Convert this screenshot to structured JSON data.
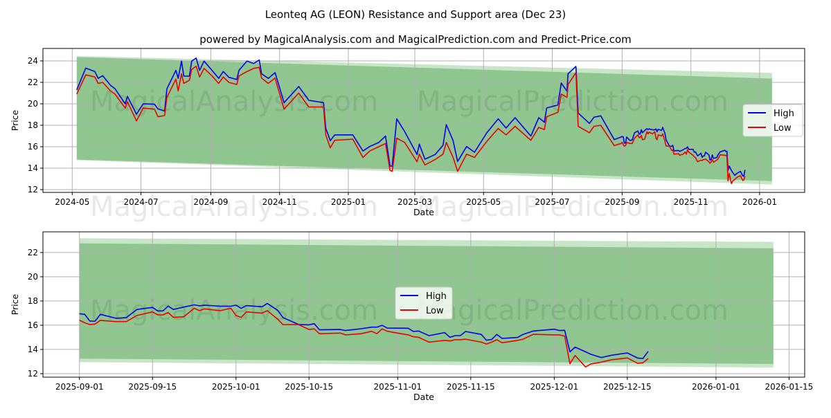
{
  "title": "Leonteq AG (LEON) Resistance and Support area (Dec 23)",
  "subtitle": "powered by MagicalAnalysis.com and MagicalPrediction.com and Predict-Price.com",
  "watermarks": [
    "MagicalAnalysis.com",
    "MagicalPrediction.com"
  ],
  "colors": {
    "high": "#0000ee",
    "low": "#ee0000",
    "band": "#8fc68f",
    "band_light": "#c2e2c2",
    "grid": "#b0b0b0"
  },
  "chart_data": [
    {
      "type": "line",
      "xlabel": "Date",
      "ylabel": "Price",
      "xlim": [
        "2024-04-05",
        "2026-02-10"
      ],
      "ylim": [
        11.74,
        25.16
      ],
      "grid": true,
      "legend": {
        "placement": "center-right",
        "entries": [
          "High",
          "Low"
        ]
      },
      "xticks": [
        "2024-05",
        "2024-07",
        "2024-09",
        "2024-11",
        "2025-01",
        "2025-03",
        "2025-05",
        "2025-07",
        "2025-09",
        "2025-11",
        "2026-01"
      ],
      "yticks": [
        12,
        14,
        16,
        18,
        20,
        22,
        24
      ],
      "bands": [
        {
          "name": "outer",
          "x": [
            "2024-05-05",
            "2026-01-12"
          ],
          "upper": [
            24.45,
            22.88
          ],
          "lower": [
            14.75,
            12.47
          ]
        },
        {
          "name": "inner",
          "x": [
            "2024-05-05",
            "2026-01-12"
          ],
          "upper": [
            24.35,
            22.35
          ],
          "lower": [
            14.8,
            12.8
          ]
        }
      ],
      "series_from": "2024-05-05"
    },
    {
      "type": "line",
      "xlabel": "Date",
      "ylabel": "Price",
      "xlim": [
        "2025-08-25",
        "2026-01-18"
      ],
      "ylim": [
        11.71,
        23.71
      ],
      "grid": true,
      "legend": {
        "placement": "center",
        "entries": [
          "High",
          "Low"
        ]
      },
      "xticks": [
        "2025-09-01",
        "2025-09-15",
        "2025-10-01",
        "2025-10-15",
        "2025-11-01",
        "2025-11-15",
        "2025-12-01",
        "2025-12-15",
        "2026-01-01",
        "2026-01-15"
      ],
      "yticks": [
        12,
        14,
        16,
        18,
        20,
        22
      ],
      "bands": [
        {
          "name": "outer",
          "x": [
            "2025-09-01",
            "2026-01-12"
          ],
          "upper": [
            23.18,
            22.88
          ],
          "lower": [
            12.95,
            12.5
          ]
        },
        {
          "name": "inner",
          "x": [
            "2025-09-01",
            "2026-01-12"
          ],
          "upper": [
            22.76,
            22.35
          ],
          "lower": [
            13.24,
            12.8
          ]
        }
      ],
      "series_from": "2025-09-01"
    }
  ],
  "series": {
    "names": [
      "High",
      "Low"
    ],
    "points": [
      [
        "2024-05-05",
        21.29,
        20.9
      ],
      [
        "2024-05-13",
        23.33,
        22.7
      ],
      [
        "2024-05-21",
        23.01,
        22.5
      ],
      [
        "2024-05-24",
        22.37,
        21.9
      ],
      [
        "2024-05-28",
        22.62,
        22.0
      ],
      [
        "2024-06-04",
        21.72,
        21.2
      ],
      [
        "2024-06-08",
        21.4,
        20.9
      ],
      [
        "2024-06-17",
        20.0,
        19.6
      ],
      [
        "2024-06-19",
        20.69,
        20.2
      ],
      [
        "2024-06-27",
        19.03,
        18.4
      ],
      [
        "2024-07-03",
        20.0,
        19.6
      ],
      [
        "2024-07-13",
        19.96,
        19.5
      ],
      [
        "2024-07-16",
        19.53,
        18.8
      ],
      [
        "2024-07-22",
        19.32,
        18.9
      ],
      [
        "2024-07-24",
        21.4,
        20.6
      ],
      [
        "2024-08-01",
        23.12,
        22.3
      ],
      [
        "2024-08-03",
        22.37,
        21.2
      ],
      [
        "2024-08-06",
        23.98,
        22.8
      ],
      [
        "2024-08-08",
        22.58,
        21.9
      ],
      [
        "2024-08-13",
        22.58,
        22.2
      ],
      [
        "2024-08-15",
        23.98,
        23.2
      ],
      [
        "2024-08-19",
        24.26,
        23.5
      ],
      [
        "2024-08-22",
        23.12,
        22.5
      ],
      [
        "2024-08-26",
        23.98,
        23.3
      ],
      [
        "2024-09-02",
        23.12,
        22.6
      ],
      [
        "2024-09-08",
        22.37,
        21.9
      ],
      [
        "2024-09-12",
        23.01,
        22.5
      ],
      [
        "2024-09-17",
        22.47,
        22.0
      ],
      [
        "2024-09-24",
        22.26,
        21.8
      ],
      [
        "2024-09-26",
        23.12,
        22.6
      ],
      [
        "2024-10-03",
        23.98,
        23.0
      ],
      [
        "2024-10-09",
        23.76,
        23.3
      ],
      [
        "2024-10-14",
        24.08,
        23.4
      ],
      [
        "2024-10-16",
        22.8,
        22.4
      ],
      [
        "2024-10-22",
        22.37,
        21.9
      ],
      [
        "2024-10-28",
        22.9,
        22.4
      ],
      [
        "2024-11-05",
        20.11,
        19.5
      ],
      [
        "2024-11-18",
        21.61,
        21.0
      ],
      [
        "2024-11-27",
        20.32,
        19.7
      ],
      [
        "2024-12-10",
        20.11,
        19.7
      ],
      [
        "2024-12-12",
        17.74,
        17.1
      ],
      [
        "2024-12-16",
        16.56,
        15.9
      ],
      [
        "2024-12-20",
        17.1,
        16.6
      ],
      [
        "2025-01-05",
        17.1,
        16.7
      ],
      [
        "2025-01-14",
        15.6,
        15.0
      ],
      [
        "2025-01-20",
        16.02,
        15.6
      ],
      [
        "2025-01-28",
        16.39,
        16.0
      ],
      [
        "2025-02-03",
        16.99,
        16.3
      ],
      [
        "2025-02-07",
        14.19,
        13.8
      ],
      [
        "2025-02-09",
        14.19,
        13.7
      ],
      [
        "2025-02-13",
        18.6,
        16.8
      ],
      [
        "2025-02-20",
        17.42,
        16.4
      ],
      [
        "2025-03-03",
        15.27,
        14.6
      ],
      [
        "2025-03-05",
        16.24,
        15.3
      ],
      [
        "2025-03-10",
        14.84,
        14.3
      ],
      [
        "2025-03-19",
        15.27,
        14.8
      ],
      [
        "2025-03-26",
        16.13,
        15.3
      ],
      [
        "2025-03-29",
        18.06,
        16.4
      ],
      [
        "2025-04-04",
        16.56,
        15.0
      ],
      [
        "2025-04-08",
        14.62,
        13.7
      ],
      [
        "2025-04-16",
        16.02,
        15.3
      ],
      [
        "2025-04-23",
        15.48,
        15.0
      ],
      [
        "2025-05-04",
        17.31,
        16.5
      ],
      [
        "2025-05-14",
        18.6,
        17.7
      ],
      [
        "2025-05-21",
        17.74,
        17.1
      ],
      [
        "2025-05-29",
        18.71,
        17.9
      ],
      [
        "2025-06-12",
        16.99,
        16.6
      ],
      [
        "2025-06-19",
        18.71,
        17.8
      ],
      [
        "2025-06-24",
        18.28,
        17.6
      ],
      [
        "2025-06-26",
        19.61,
        18.8
      ],
      [
        "2025-07-06",
        19.89,
        19.2
      ],
      [
        "2025-07-09",
        21.94,
        20.9
      ],
      [
        "2025-07-14",
        21.18,
        20.6
      ],
      [
        "2025-07-15",
        22.8,
        21.8
      ],
      [
        "2025-07-22",
        23.48,
        22.9
      ],
      [
        "2025-07-24",
        19.14,
        17.9
      ],
      [
        "2025-08-03",
        18.17,
        17.3
      ],
      [
        "2025-08-07",
        18.75,
        17.9
      ],
      [
        "2025-08-13",
        18.88,
        18.0
      ],
      [
        "2025-08-25",
        16.66,
        16.1
      ],
      [
        "2025-08-31",
        16.9,
        16.3
      ],
      [
        "2025-09-01",
        16.95,
        16.42
      ],
      [
        "2025-09-02",
        16.9,
        16.2
      ],
      [
        "2025-09-03",
        16.34,
        16.05
      ],
      [
        "2025-09-04",
        16.34,
        16.1
      ],
      [
        "2025-09-05",
        16.9,
        16.4
      ],
      [
        "2025-09-08",
        16.57,
        16.3
      ],
      [
        "2025-09-10",
        16.63,
        16.3
      ],
      [
        "2025-09-12",
        17.3,
        16.8
      ],
      [
        "2025-09-15",
        17.47,
        17.1
      ],
      [
        "2025-09-16",
        17.18,
        16.85
      ],
      [
        "2025-09-17",
        17.18,
        16.85
      ],
      [
        "2025-09-18",
        17.58,
        17.05
      ],
      [
        "2025-09-19",
        17.3,
        16.65
      ],
      [
        "2025-09-21",
        17.5,
        16.7
      ],
      [
        "2025-09-23",
        17.68,
        17.4
      ],
      [
        "2025-09-24",
        17.6,
        17.2
      ],
      [
        "2025-09-25",
        17.66,
        17.35
      ],
      [
        "2025-09-28",
        17.57,
        17.2
      ],
      [
        "2025-09-30",
        17.57,
        17.4
      ],
      [
        "2025-10-01",
        17.66,
        16.8
      ],
      [
        "2025-10-02",
        17.39,
        16.65
      ],
      [
        "2025-10-03",
        17.62,
        17.1
      ],
      [
        "2025-10-06",
        17.52,
        17.0
      ],
      [
        "2025-10-07",
        17.8,
        17.2
      ],
      [
        "2025-10-09",
        17.23,
        16.5
      ],
      [
        "2025-10-10",
        16.63,
        16.05
      ],
      [
        "2025-10-13",
        16.06,
        16.05
      ],
      [
        "2025-10-15",
        16.03,
        15.65
      ],
      [
        "2025-10-16",
        16.13,
        15.7
      ],
      [
        "2025-10-17",
        15.62,
        15.3
      ],
      [
        "2025-10-21",
        15.65,
        15.35
      ],
      [
        "2025-10-22",
        15.56,
        15.2
      ],
      [
        "2025-10-25",
        15.71,
        15.3
      ],
      [
        "2025-10-27",
        15.84,
        15.5
      ],
      [
        "2025-10-28",
        15.84,
        15.3
      ],
      [
        "2025-10-29",
        15.99,
        15.7
      ],
      [
        "2025-10-30",
        15.76,
        15.5
      ],
      [
        "2025-11-03",
        15.75,
        15.2
      ],
      [
        "2025-11-04",
        15.48,
        15.05
      ],
      [
        "2025-11-05",
        15.52,
        15.0
      ],
      [
        "2025-11-07",
        15.14,
        14.6
      ],
      [
        "2025-11-10",
        15.39,
        14.75
      ],
      [
        "2025-11-11",
        15.01,
        14.7
      ],
      [
        "2025-11-12",
        15.14,
        14.8
      ],
      [
        "2025-11-13",
        15.14,
        14.8
      ],
      [
        "2025-11-14",
        15.48,
        14.85
      ],
      [
        "2025-11-17",
        15.24,
        14.6
      ],
      [
        "2025-11-18",
        14.76,
        14.45
      ],
      [
        "2025-11-19",
        14.82,
        14.6
      ],
      [
        "2025-11-20",
        15.24,
        14.8
      ],
      [
        "2025-11-21",
        14.91,
        14.55
      ],
      [
        "2025-11-24",
        14.99,
        14.75
      ],
      [
        "2025-11-25",
        15.24,
        14.85
      ],
      [
        "2025-11-27",
        15.52,
        15.25
      ],
      [
        "2025-12-01",
        15.67,
        15.2
      ],
      [
        "2025-12-02",
        15.56,
        15.2
      ],
      [
        "2025-12-03",
        15.58,
        15.1
      ],
      [
        "2025-12-04",
        13.8,
        12.82
      ],
      [
        "2025-12-05",
        14.19,
        13.5
      ],
      [
        "2025-12-07",
        13.8,
        12.55
      ],
      [
        "2025-12-08",
        13.6,
        12.8
      ],
      [
        "2025-12-10",
        13.33,
        12.95
      ],
      [
        "2025-12-12",
        13.52,
        13.15
      ],
      [
        "2025-12-15",
        13.71,
        13.3
      ],
      [
        "2025-12-17",
        13.29,
        12.85
      ],
      [
        "2025-12-18",
        13.25,
        12.9
      ],
      [
        "2025-12-19",
        13.84,
        13.25
      ]
    ]
  }
}
